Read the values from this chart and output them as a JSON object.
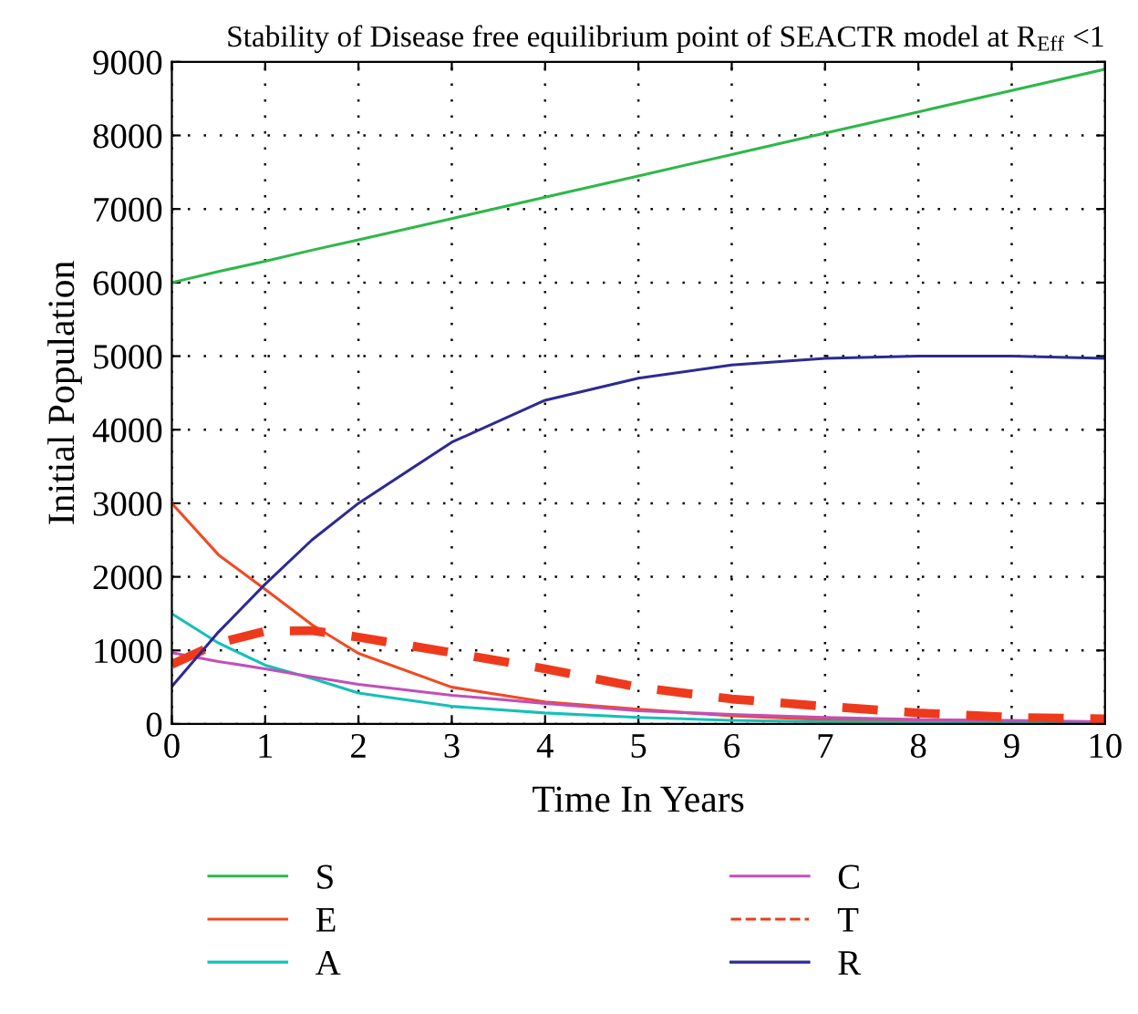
{
  "chart_data": {
    "type": "line",
    "title": "Stability of Disease free equilibrium point of SEACTR model at R$_{Eff}$ <1",
    "xlabel": "Time In Years",
    "ylabel": "Initial Population",
    "x": [
      0,
      0.5,
      1,
      1.5,
      2,
      3,
      4,
      5,
      6,
      7,
      8,
      9,
      10
    ],
    "series": [
      {
        "name": "S",
        "color": "#2db84a",
        "values": [
          6000,
          6150,
          6290,
          6440,
          6580,
          6870,
          7160,
          7450,
          7740,
          8030,
          8320,
          8610,
          8900
        ]
      },
      {
        "name": "E",
        "color": "#f04a23",
        "values": [
          3000,
          2300,
          1830,
          1350,
          960,
          500,
          300,
          200,
          110,
          60,
          30,
          20,
          10
        ]
      },
      {
        "name": "A",
        "color": "#14c0b8",
        "values": [
          1500,
          1100,
          800,
          620,
          420,
          240,
          150,
          90,
          50,
          30,
          20,
          10,
          10
        ]
      },
      {
        "name": "C",
        "color": "#c24fb8",
        "values": [
          970,
          850,
          750,
          640,
          540,
          390,
          280,
          180,
          130,
          90,
          60,
          50,
          30
        ]
      },
      {
        "name": "T",
        "color": "#ee3a1c",
        "line_style": "dashed",
        "values": [
          810,
          1100,
          1260,
          1270,
          1180,
          970,
          750,
          500,
          340,
          240,
          150,
          90,
          70
        ]
      },
      {
        "name": "R",
        "color": "#2e2a92",
        "values": [
          510,
          1250,
          1900,
          2500,
          3000,
          3830,
          4400,
          4700,
          4880,
          4970,
          5000,
          5000,
          4970
        ]
      }
    ],
    "xlim": [
      0,
      10
    ],
    "xticks": [
      0,
      1,
      2,
      3,
      4,
      5,
      6,
      7,
      8,
      9,
      10
    ],
    "ylim": [
      0,
      9000
    ],
    "yticks": [
      0,
      1000,
      2000,
      3000,
      4000,
      5000,
      6000,
      7000,
      8000,
      9000
    ],
    "grid": true,
    "legend": "bottom",
    "line_style": "solid",
    "marker": "none"
  }
}
